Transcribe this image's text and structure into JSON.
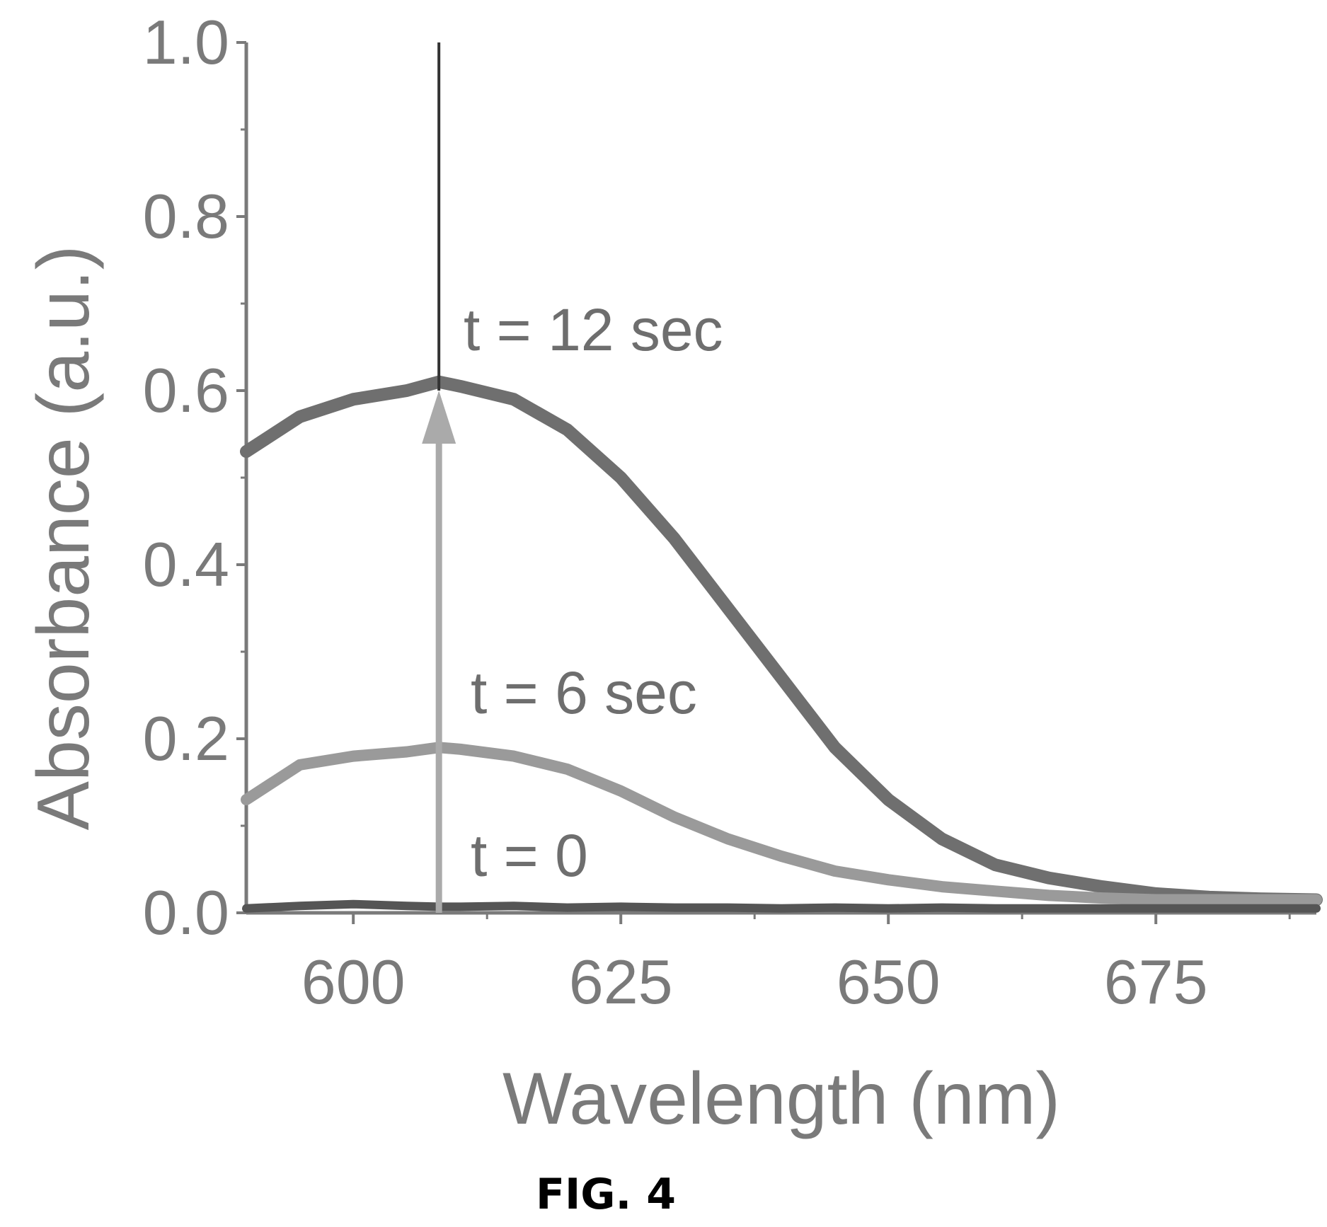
{
  "chart_data": {
    "type": "line",
    "title": "",
    "xlabel": "Wavelength (nm)",
    "ylabel": "Absorbance (a.u.)",
    "xlim": [
      590,
      690
    ],
    "ylim": [
      0.0,
      1.0
    ],
    "xticks": [
      600,
      625,
      650,
      675
    ],
    "xtick_labels": [
      "600",
      "625",
      "650",
      "675"
    ],
    "yticks": [
      0.0,
      0.2,
      0.4,
      0.6,
      0.8,
      1.0
    ],
    "ytick_labels": [
      "0.0",
      "0.2",
      "0.4",
      "0.6",
      "0.8",
      "1.0"
    ],
    "x": [
      590,
      595,
      600,
      605,
      608,
      610,
      615,
      620,
      625,
      630,
      635,
      640,
      645,
      650,
      655,
      660,
      665,
      670,
      675,
      680,
      685,
      690
    ],
    "series": [
      {
        "name": "t = 12 sec",
        "color": "#6f6f6f",
        "values": [
          0.53,
          0.57,
          0.59,
          0.6,
          0.61,
          0.605,
          0.59,
          0.555,
          0.5,
          0.43,
          0.35,
          0.27,
          0.19,
          0.13,
          0.085,
          0.055,
          0.04,
          0.03,
          0.022,
          0.018,
          0.016,
          0.015
        ]
      },
      {
        "name": "t = 6 sec",
        "color": "#9a9a9a",
        "values": [
          0.13,
          0.17,
          0.18,
          0.185,
          0.19,
          0.188,
          0.18,
          0.165,
          0.14,
          0.11,
          0.085,
          0.065,
          0.048,
          0.038,
          0.03,
          0.025,
          0.02,
          0.017,
          0.015,
          0.015,
          0.015,
          0.015
        ]
      },
      {
        "name": "t = 0",
        "color": "#555555",
        "values": [
          0.005,
          0.008,
          0.01,
          0.008,
          0.007,
          0.007,
          0.008,
          0.006,
          0.007,
          0.006,
          0.006,
          0.005,
          0.006,
          0.005,
          0.006,
          0.005,
          0.005,
          0.005,
          0.005,
          0.005,
          0.005,
          0.005
        ]
      }
    ],
    "arrow": {
      "x": 608,
      "from": 0.0,
      "to": 0.6,
      "color": "#aaaaaa"
    },
    "vertical_marker": {
      "x": 608,
      "from": 0.6,
      "to": 1.0,
      "color": "#333333"
    },
    "annotations": [
      {
        "text": "t = 12 sec"
      },
      {
        "text": "t = 6 sec"
      },
      {
        "text": "t = 0"
      }
    ],
    "grid": false,
    "legend": "none"
  },
  "figure": {
    "caption": "FIG. 4"
  }
}
